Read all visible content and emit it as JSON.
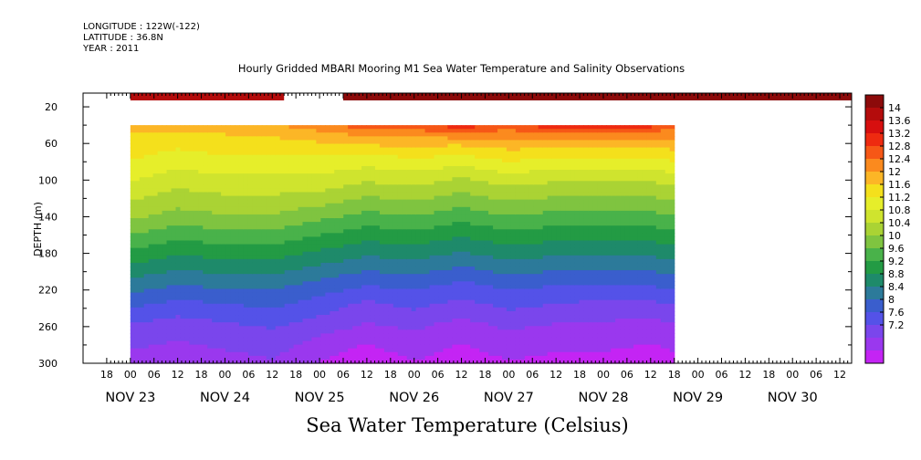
{
  "chart_data": {
    "type": "heatmap",
    "title": "Hourly Gridded MBARI Mooring M1 Sea Water Temperature and Salinity Observations",
    "info_lines": [
      "LONGITUDE : 122W(-122)",
      "LATITUDE : 36.8N",
      "YEAR : 2011"
    ],
    "xlabel": "",
    "ylabel": "DEPTH (m)",
    "colorbar_label": "Sea Water Temperature (Celsius)",
    "x_range": [
      "2011-11-22T12:00",
      "2011-11-30T15:00"
    ],
    "y_range": [
      5,
      300
    ],
    "y_ticks": [
      20,
      60,
      100,
      140,
      180,
      220,
      260,
      300
    ],
    "x_hour_labels": [
      "18",
      "00",
      "06",
      "12",
      "18",
      "00",
      "06",
      "12",
      "18",
      "00",
      "06",
      "12",
      "18",
      "00",
      "06",
      "12",
      "18",
      "00",
      "06",
      "12",
      "18",
      "00",
      "06",
      "12",
      "18",
      "00",
      "06",
      "12",
      "18",
      "00",
      "06",
      "12",
      "18",
      "00",
      "06",
      "12"
    ],
    "x_day_labels": [
      {
        "label": "NOV 23",
        "date": "2011-11-23"
      },
      {
        "label": "NOV 24",
        "date": "2011-11-24"
      },
      {
        "label": "NOV 25",
        "date": "2011-11-25"
      },
      {
        "label": "NOV 26",
        "date": "2011-11-26"
      },
      {
        "label": "NOV 27",
        "date": "2011-11-27"
      },
      {
        "label": "NOV 28",
        "date": "2011-11-28"
      },
      {
        "label": "NOV 29",
        "date": "2011-11-29"
      },
      {
        "label": "NOV 30",
        "date": "2011-11-30"
      }
    ],
    "colorbar_ticks": [
      "14",
      "13.6",
      "13.2",
      "12.8",
      "12.4",
      "12",
      "11.6",
      "11.2",
      "10.8",
      "10.4",
      "10",
      "9.6",
      "9.2",
      "8.8",
      "8.4",
      "8",
      "7.6",
      "7.2"
    ],
    "colorbar_colors": [
      "#8c0a0a",
      "#b40c0c",
      "#d70f0f",
      "#ee2a10",
      "#f65716",
      "#fb8a1e",
      "#fcb626",
      "#f4e01c",
      "#e6ee2a",
      "#cfe42e",
      "#aad334",
      "#7fc440",
      "#49b24a",
      "#239b44",
      "#1e8a6a",
      "#2c7a9a",
      "#3a5ecd",
      "#5452e8",
      "#7a46ec",
      "#9a38ee",
      "#c424f4"
    ],
    "value_min": 7.2,
    "value_max": 14,
    "surface_segments": [
      {
        "start": "2011-11-23T00:00",
        "end": "2011-11-24T15:00",
        "temperature": 13.4
      },
      {
        "start": "2011-11-25T06:00",
        "end": "2011-11-30T15:00",
        "temperature": 13.7
      }
    ],
    "profile_series": {
      "time_start": "2011-11-23T00:00",
      "time_end": "2011-11-28T18:00",
      "depths": [
        40,
        45,
        60,
        80,
        100,
        120,
        140,
        160,
        180,
        200,
        220,
        240,
        260,
        280,
        300
      ],
      "profiles": [
        {
          "time": "2011-11-23T00:00",
          "temps": [
            11.9,
            11.8,
            11.6,
            11.4,
            11.1,
            10.8,
            10.5,
            10.1,
            9.7,
            9.3,
            8.9,
            8.5,
            8.1,
            7.9,
            7.7
          ]
        },
        {
          "time": "2011-11-23T12:00",
          "temps": [
            11.9,
            11.8,
            11.5,
            11.2,
            10.9,
            10.6,
            10.3,
            9.9,
            9.5,
            9.1,
            8.7,
            8.3,
            8.0,
            7.8,
            7.6
          ]
        },
        {
          "time": "2011-11-24T00:00",
          "temps": [
            11.9,
            11.8,
            11.6,
            11.3,
            11.0,
            10.7,
            10.4,
            10.0,
            9.6,
            9.2,
            8.8,
            8.4,
            8.1,
            7.9,
            7.7
          ]
        },
        {
          "time": "2011-11-24T12:00",
          "temps": [
            12.0,
            11.9,
            11.6,
            11.3,
            11.0,
            10.7,
            10.4,
            10.0,
            9.6,
            9.2,
            8.8,
            8.5,
            8.2,
            8.0,
            7.8
          ]
        },
        {
          "time": "2011-11-25T00:00",
          "temps": [
            12.3,
            12.1,
            11.7,
            11.3,
            11.0,
            10.6,
            10.2,
            9.8,
            9.4,
            9.0,
            8.6,
            8.3,
            8.0,
            7.7,
            7.5
          ]
        },
        {
          "time": "2011-11-25T12:00",
          "temps": [
            12.6,
            12.3,
            11.8,
            11.2,
            10.8,
            10.4,
            10.0,
            9.6,
            9.2,
            8.8,
            8.4,
            8.0,
            7.8,
            7.5,
            7.3
          ]
        },
        {
          "time": "2011-11-26T00:00",
          "temps": [
            12.8,
            12.4,
            11.8,
            11.3,
            10.9,
            10.5,
            10.1,
            9.7,
            9.3,
            8.9,
            8.5,
            8.2,
            7.9,
            7.7,
            7.5
          ]
        },
        {
          "time": "2011-11-26T12:00",
          "temps": [
            12.9,
            12.5,
            11.8,
            11.2,
            10.7,
            10.3,
            9.9,
            9.5,
            9.1,
            8.7,
            8.3,
            8.0,
            7.7,
            7.5,
            7.3
          ]
        },
        {
          "time": "2011-11-27T00:00",
          "temps": [
            12.8,
            12.4,
            11.9,
            11.4,
            10.9,
            10.5,
            10.1,
            9.7,
            9.3,
            8.9,
            8.5,
            8.2,
            7.9,
            7.7,
            7.5
          ]
        },
        {
          "time": "2011-11-27T12:00",
          "temps": [
            12.9,
            12.5,
            11.9,
            11.3,
            10.8,
            10.4,
            10.0,
            9.6,
            9.2,
            8.8,
            8.4,
            8.1,
            7.8,
            7.6,
            7.4
          ]
        },
        {
          "time": "2011-11-28T00:00",
          "temps": [
            13.1,
            12.6,
            11.9,
            11.3,
            10.8,
            10.4,
            10.0,
            9.6,
            9.2,
            8.8,
            8.4,
            8.0,
            7.8,
            7.6,
            7.4
          ]
        },
        {
          "time": "2011-11-28T12:00",
          "temps": [
            12.9,
            12.5,
            11.9,
            11.3,
            10.8,
            10.4,
            10.0,
            9.6,
            9.2,
            8.8,
            8.4,
            8.0,
            7.7,
            7.5,
            7.3
          ]
        },
        {
          "time": "2011-11-28T18:00",
          "temps": [
            12.6,
            12.3,
            11.9,
            11.4,
            10.9,
            10.5,
            10.1,
            9.7,
            9.3,
            8.9,
            8.5,
            8.1,
            7.8,
            7.6,
            7.4
          ]
        }
      ]
    }
  }
}
